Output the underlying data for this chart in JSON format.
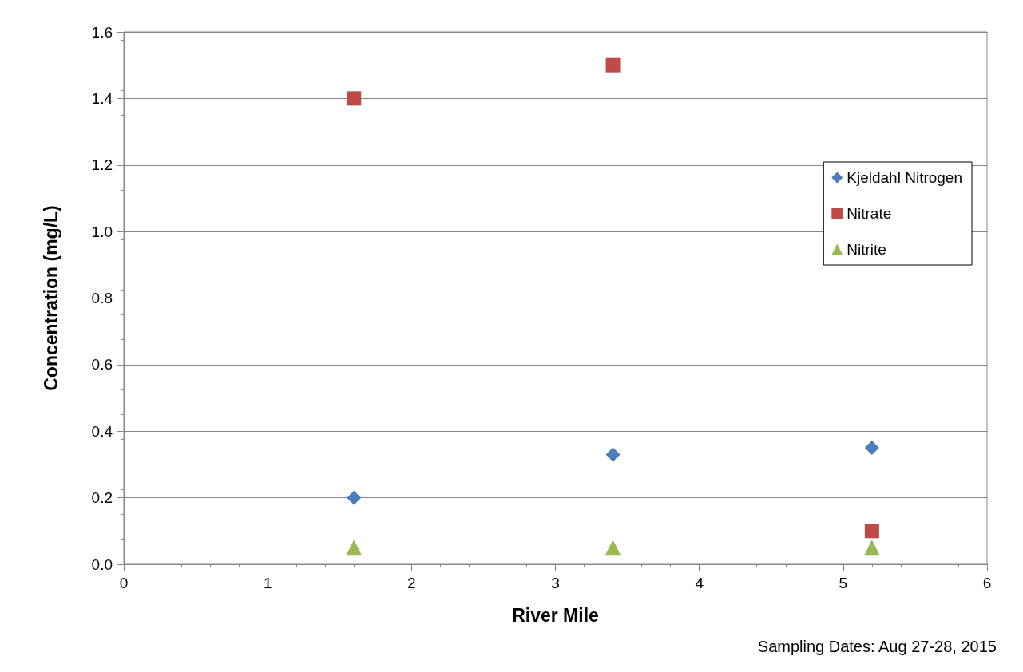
{
  "chart_data": {
    "type": "scatter",
    "xlabel": "River Mile",
    "ylabel": "Concentration (mg/L)",
    "annotations": [
      "Sampling Dates: Aug 27-28, 2015"
    ],
    "xlim": [
      0,
      6
    ],
    "xticks": [
      0,
      1,
      2,
      3,
      4,
      5,
      6
    ],
    "ylim": [
      0,
      1.6
    ],
    "yticks": [
      {
        "value": 0,
        "label": "0.0"
      },
      {
        "value": 0.2,
        "label": "0.2"
      },
      {
        "value": 0.4,
        "label": "0.4"
      },
      {
        "value": 0.6,
        "label": "0.6"
      },
      {
        "value": 0.8,
        "label": "0.8"
      },
      {
        "value": 1,
        "label": "1.0"
      },
      {
        "value": 1.2,
        "label": "1.2"
      },
      {
        "value": 1.4,
        "label": "1.4"
      },
      {
        "value": 1.6,
        "label": "1.6"
      }
    ],
    "grid": "y",
    "legend": "right",
    "series": [
      {
        "name": "Kjeldahl Nitrogen",
        "color": "#4a7ebb",
        "marker": "diamond",
        "x": [
          1.6,
          3.4,
          5.2
        ],
        "values": [
          0.2,
          0.33,
          0.35
        ]
      },
      {
        "name": "Nitrate",
        "color": "#be4b48",
        "marker": "square",
        "x": [
          1.6,
          3.4,
          5.2
        ],
        "values": [
          1.4,
          1.5,
          0.1
        ]
      },
      {
        "name": "Nitrite",
        "color": "#98b954",
        "marker": "triangle",
        "x": [
          1.6,
          3.4,
          5.2
        ],
        "values": [
          0.05,
          0.05,
          0.05
        ]
      }
    ]
  }
}
